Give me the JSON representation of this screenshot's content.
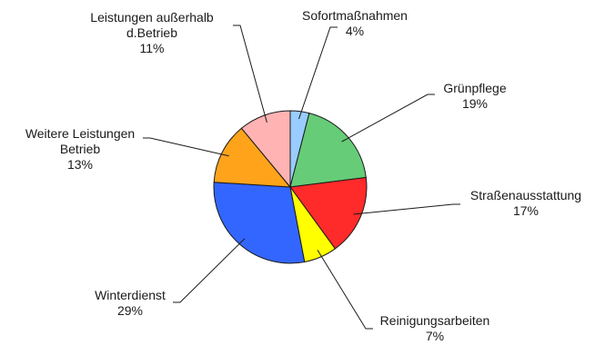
{
  "chart_data": {
    "type": "pie",
    "title": "",
    "unit": "%",
    "start_angle_deg": 0,
    "direction": "clockwise",
    "legend": "none",
    "slices": [
      {
        "label_lines": [
          "Sofortmaßnahmen"
        ],
        "pct_text": "4%",
        "value": 4,
        "color": "#99ccff"
      },
      {
        "label_lines": [
          "Grünpflege"
        ],
        "pct_text": "19%",
        "value": 19,
        "color": "#66cc77"
      },
      {
        "label_lines": [
          "Straßenausstattung"
        ],
        "pct_text": "17%",
        "value": 17,
        "color": "#ff2a2a"
      },
      {
        "label_lines": [
          "Reinigungsarbeiten"
        ],
        "pct_text": "7%",
        "value": 7,
        "color": "#ffff00"
      },
      {
        "label_lines": [
          "Winterdienst"
        ],
        "pct_text": "29%",
        "value": 29,
        "color": "#3366ff"
      },
      {
        "label_lines": [
          "Weitere Leistungen",
          "Betrieb"
        ],
        "pct_text": "13%",
        "value": 13,
        "color": "#ffa31a"
      },
      {
        "label_lines": [
          "Leistungen außerhalb",
          "d.Betrieb"
        ],
        "pct_text": "11%",
        "value": 11,
        "color": "#ffb3b3"
      }
    ]
  }
}
